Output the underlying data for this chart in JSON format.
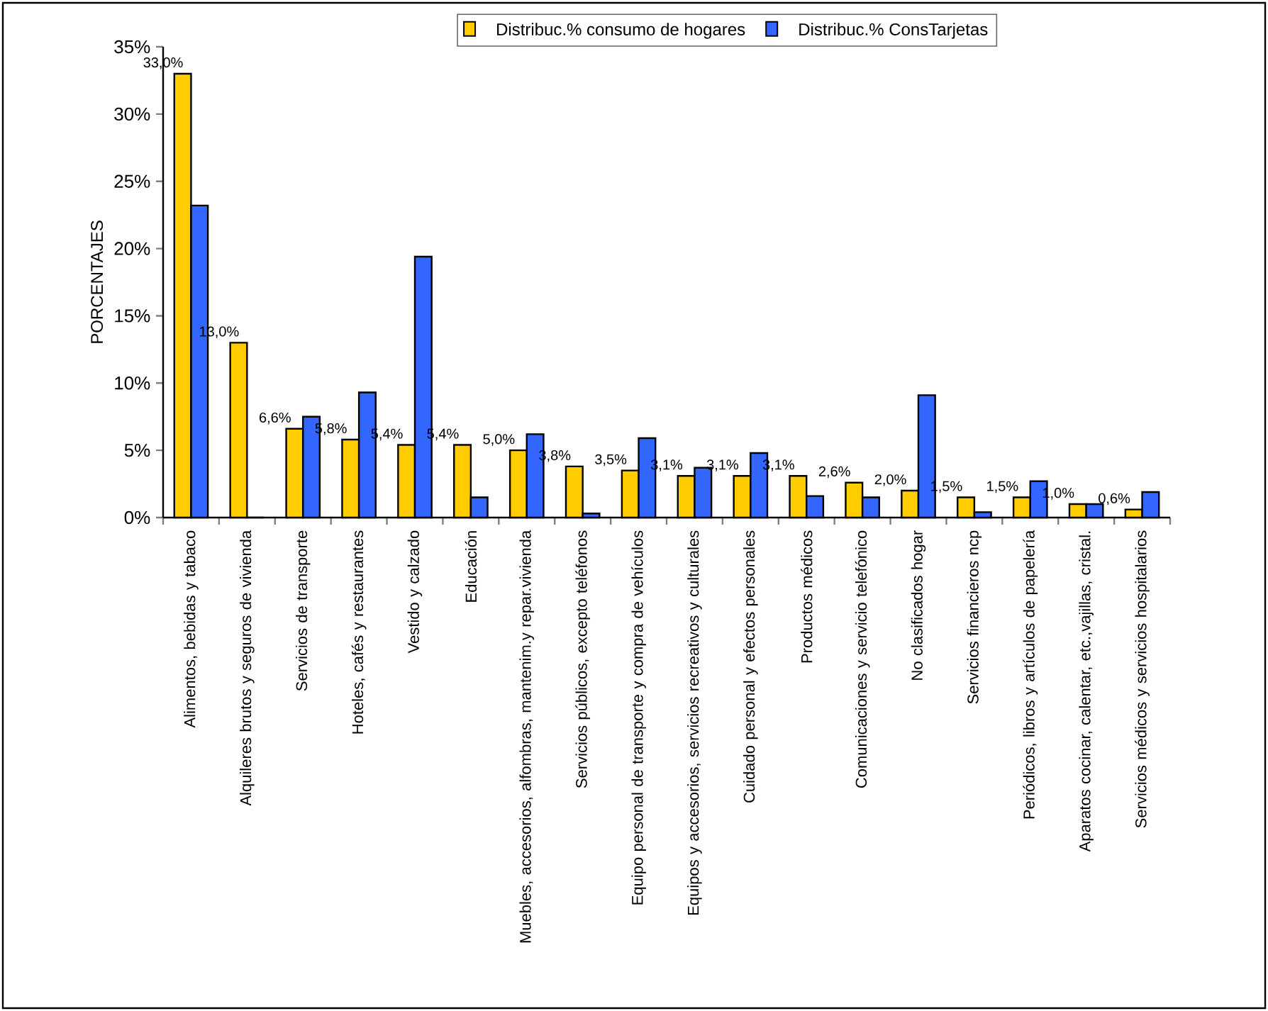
{
  "chart_data": {
    "type": "bar",
    "ylabel": "PORCENTAJES",
    "categories": [
      "Alimentos, bebidas y tabaco",
      "Alquileres brutos y seguros de vivienda",
      "Servicios de transporte",
      "Hoteles, cafés y restaurantes",
      "Vestido y calzado",
      "Educación",
      "Muebles, accesorios, alfombras, mantenim.y repar.vivienda",
      "Servicios públicos, excepto teléfonos",
      "Equipo personal de transporte y compra de vehículos",
      "Equipos y accesorios, servicios recreativos y culturales",
      "Cuidado personal y efectos personales",
      "Productos médicos",
      "Comunicaciones y servicio telefónico",
      "No clasificados     hogar",
      "Servicios financieros ncp",
      "Periódicos, libros y artículos de papelería",
      "Aparatos cocinar, calentar, etc.,vajillas, cristal.",
      "Servicios médicos y servicios hospitalarios"
    ],
    "series": [
      {
        "name": "Distribuc.% consumo de hogares",
        "color": "#ffcc00",
        "values": [
          33.0,
          13.0,
          6.6,
          5.8,
          5.4,
          5.4,
          5.0,
          3.8,
          3.5,
          3.1,
          3.1,
          3.1,
          2.6,
          2.0,
          1.5,
          1.5,
          1.0,
          0.6
        ],
        "value_labels": [
          "33,0%",
          "13,0%",
          "6,6%",
          "5,8%",
          "5,4%",
          "5,4%",
          "5,0%",
          "3,8%",
          "3,5%",
          "3,1%",
          "3,1%",
          "3,1%",
          "2,6%",
          "2,0%",
          "1,5%",
          "1,5%",
          "1,0%",
          "0,6%"
        ]
      },
      {
        "name": "Distribuc.% ConsTarjetas",
        "color": "#3366ff",
        "values": [
          23.2,
          0,
          7.5,
          9.3,
          19.4,
          1.5,
          6.2,
          0.3,
          5.9,
          3.7,
          4.8,
          1.6,
          1.5,
          9.1,
          0.4,
          2.7,
          1.0,
          1.9
        ]
      }
    ],
    "ylim": [
      0,
      35
    ],
    "yticks": [
      {
        "value": 0,
        "label": "0%"
      },
      {
        "value": 5,
        "label": "5%"
      },
      {
        "value": 10,
        "label": "10%"
      },
      {
        "value": 15,
        "label": "15%"
      },
      {
        "value": 20,
        "label": "20%"
      },
      {
        "value": 25,
        "label": "25%"
      },
      {
        "value": 30,
        "label": "30%"
      },
      {
        "value": 35,
        "label": "35%"
      }
    ],
    "grid": false,
    "legend": "top"
  }
}
